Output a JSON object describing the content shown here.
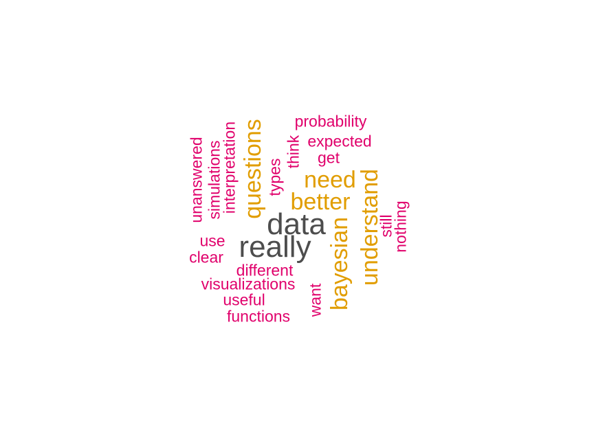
{
  "colors": {
    "background": "#ffffff",
    "tier_high": "#4d4d4d",
    "tier_mid": "#e19d00",
    "tier_low": "#e0006b"
  },
  "words": [
    {
      "text": "data",
      "tier": "high",
      "orientation": "horizontal"
    },
    {
      "text": "really",
      "tier": "high",
      "orientation": "horizontal"
    },
    {
      "text": "questions",
      "tier": "mid",
      "orientation": "vertical"
    },
    {
      "text": "need",
      "tier": "mid",
      "orientation": "horizontal"
    },
    {
      "text": "better",
      "tier": "mid",
      "orientation": "horizontal"
    },
    {
      "text": "understand",
      "tier": "mid",
      "orientation": "vertical"
    },
    {
      "text": "bayesian",
      "tier": "mid",
      "orientation": "vertical"
    },
    {
      "text": "probability",
      "tier": "low",
      "orientation": "horizontal"
    },
    {
      "text": "expected",
      "tier": "low",
      "orientation": "horizontal"
    },
    {
      "text": "get",
      "tier": "low",
      "orientation": "horizontal"
    },
    {
      "text": "think",
      "tier": "low",
      "orientation": "vertical"
    },
    {
      "text": "types",
      "tier": "low",
      "orientation": "vertical"
    },
    {
      "text": "unanswered",
      "tier": "low",
      "orientation": "vertical"
    },
    {
      "text": "simulations",
      "tier": "low",
      "orientation": "vertical"
    },
    {
      "text": "interpretation",
      "tier": "low",
      "orientation": "vertical"
    },
    {
      "text": "still",
      "tier": "low",
      "orientation": "vertical"
    },
    {
      "text": "nothing",
      "tier": "low",
      "orientation": "vertical"
    },
    {
      "text": "use",
      "tier": "low",
      "orientation": "horizontal"
    },
    {
      "text": "clear",
      "tier": "low",
      "orientation": "horizontal"
    },
    {
      "text": "different",
      "tier": "low",
      "orientation": "horizontal"
    },
    {
      "text": "visualizations",
      "tier": "low",
      "orientation": "horizontal"
    },
    {
      "text": "useful",
      "tier": "low",
      "orientation": "horizontal"
    },
    {
      "text": "functions",
      "tier": "low",
      "orientation": "horizontal"
    },
    {
      "text": "want",
      "tier": "low",
      "orientation": "vertical"
    }
  ]
}
